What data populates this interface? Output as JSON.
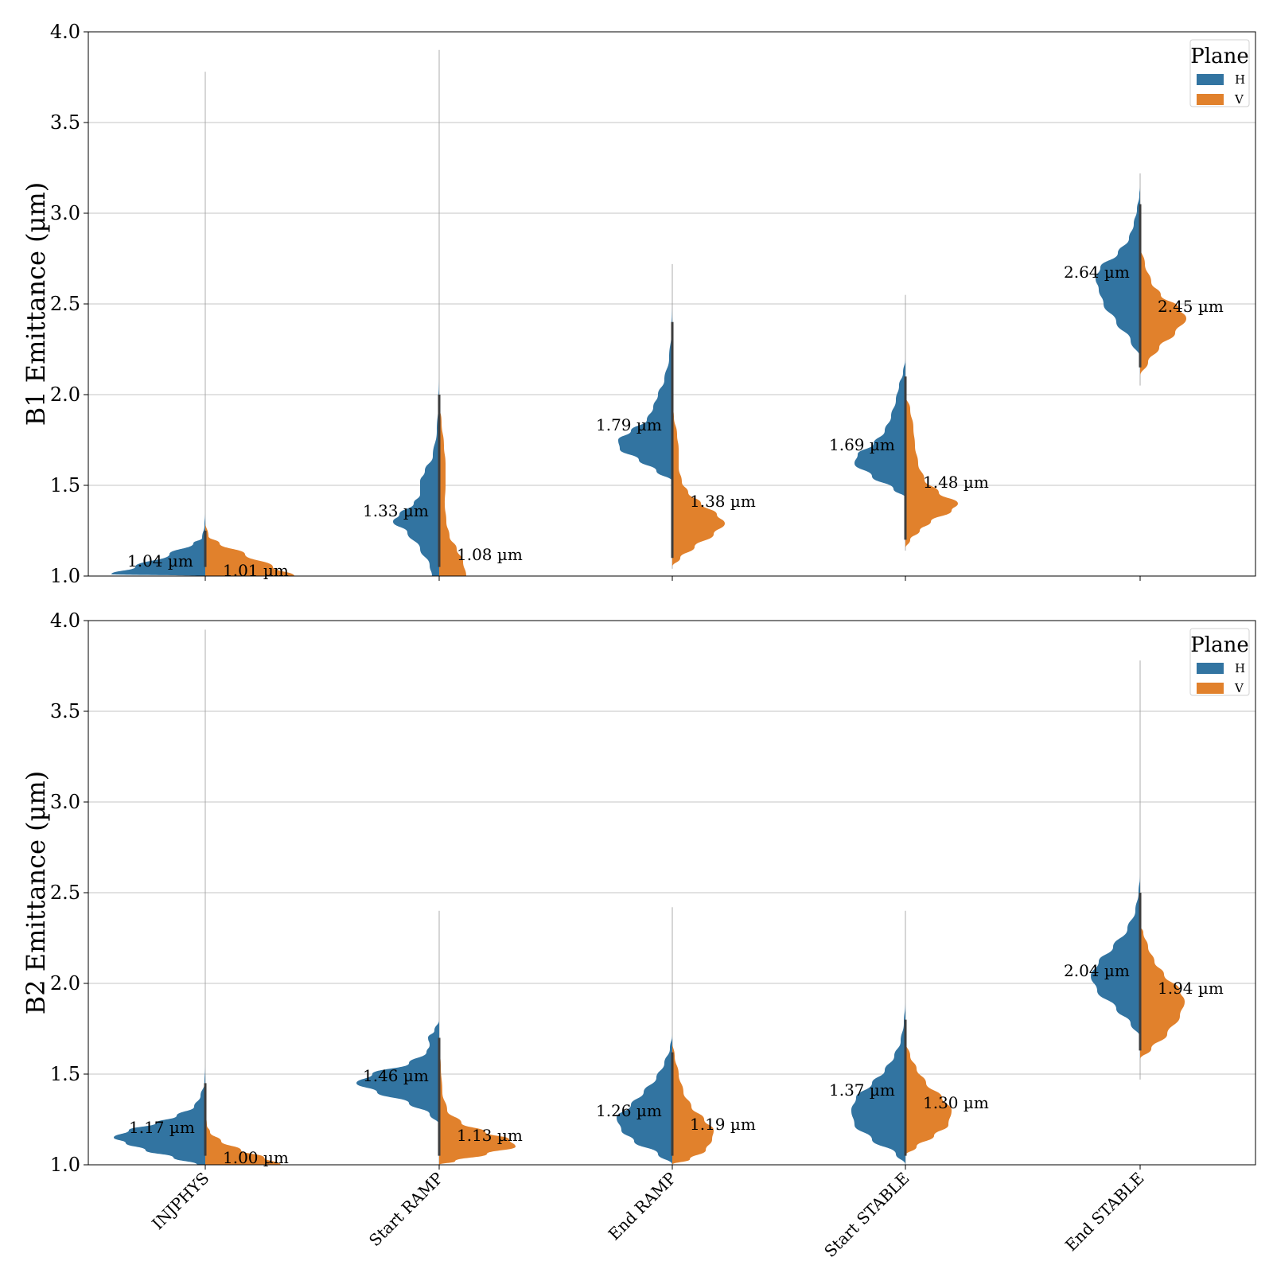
{
  "chart_data": [
    {
      "type": "violin",
      "ylabel": "B1 Emittance (µm)",
      "ylim": [
        1.0,
        4.0
      ],
      "yticks": [
        "1.0",
        "1.5",
        "2.0",
        "2.5",
        "3.0",
        "3.5",
        "4.0"
      ],
      "grid": true,
      "legend": {
        "title": "Plane",
        "entries": [
          "H",
          "V"
        ],
        "placement": "top-right"
      },
      "categories": [
        "INJPHYS",
        "Start RAMP",
        "End RAMP",
        "Start STABLE",
        "End STABLE"
      ],
      "series": [
        {
          "name": "H",
          "color": "#3274a1",
          "medians": [
            1.04,
            1.33,
            1.79,
            1.69,
            2.64
          ],
          "median_labels": [
            "1.04 µm",
            "1.33 µm",
            "1.79 µm",
            "1.69 µm",
            "2.64 µm"
          ]
        },
        {
          "name": "V",
          "color": "#e1812c",
          "medians": [
            1.01,
            1.08,
            1.38,
            1.48,
            2.45
          ],
          "median_labels": [
            "1.01 µm",
            "1.08 µm",
            "1.38 µm",
            "1.48 µm",
            "2.45 µm"
          ]
        }
      ]
    },
    {
      "type": "violin",
      "ylabel": "B2 Emittance (µm)",
      "ylim": [
        1.0,
        4.0
      ],
      "yticks": [
        "1.0",
        "1.5",
        "2.0",
        "2.5",
        "3.0",
        "3.5",
        "4.0"
      ],
      "grid": true,
      "legend": {
        "title": "Plane",
        "entries": [
          "H",
          "V"
        ],
        "placement": "top-right"
      },
      "categories": [
        "INJPHYS",
        "Start RAMP",
        "End RAMP",
        "Start STABLE",
        "End STABLE"
      ],
      "series": [
        {
          "name": "H",
          "color": "#3274a1",
          "medians": [
            1.17,
            1.46,
            1.26,
            1.37,
            2.04
          ],
          "median_labels": [
            "1.17 µm",
            "1.46 µm",
            "1.26 µm",
            "1.37 µm",
            "2.04 µm"
          ]
        },
        {
          "name": "V",
          "color": "#e1812c",
          "medians": [
            1.0,
            1.13,
            1.19,
            1.3,
            1.94
          ],
          "median_labels": [
            "1.00 µm",
            "1.13 µm",
            "1.19 µm",
            "1.30 µm",
            "1.94 µm"
          ]
        }
      ]
    }
  ]
}
